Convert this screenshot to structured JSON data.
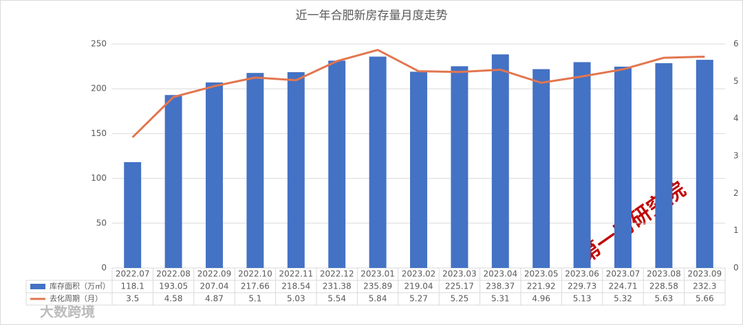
{
  "chart_data": {
    "type": "bar_line",
    "title": "近一年合肥新房存量月度走势",
    "categories": [
      "2022.07",
      "2022.08",
      "2022.09",
      "2022.10",
      "2022.11",
      "2022.12",
      "2023.01",
      "2023.02",
      "2023.03",
      "2023.04",
      "2023.05",
      "2023.06",
      "2023.07",
      "2023.08",
      "2023.09"
    ],
    "series": [
      {
        "name": "库存面积（万㎡）",
        "type": "bar",
        "color": "#4472c4",
        "values": [
          118.1,
          193.05,
          207.04,
          217.66,
          218.54,
          231.38,
          235.89,
          219.04,
          225.17,
          238.37,
          221.92,
          229.73,
          224.71,
          228.58,
          232.3
        ]
      },
      {
        "name": "去化周期（月）",
        "type": "line",
        "axis": "y2",
        "color": "#e2764f",
        "values": [
          3.5,
          4.58,
          4.87,
          5.1,
          5.03,
          5.54,
          5.84,
          5.27,
          5.25,
          5.31,
          4.96,
          5.13,
          5.32,
          5.63,
          5.66
        ]
      }
    ],
    "ylim": [
      0,
      250
    ],
    "yticks": [
      0,
      50,
      100,
      150,
      200,
      250
    ],
    "y2lim": [
      0,
      6
    ],
    "y2ticks": [
      0,
      1,
      2,
      3,
      4,
      5,
      6
    ],
    "grid": true,
    "annotations": [
      "第一房研究院",
      "大数跨境"
    ]
  }
}
